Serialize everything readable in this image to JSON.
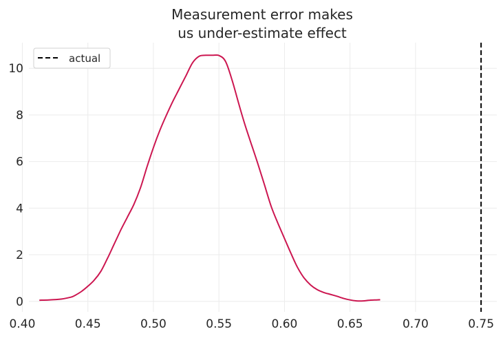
{
  "chart_data": {
    "type": "line",
    "title_lines": [
      "Measurement error makes",
      "us under-estimate effect"
    ],
    "xlabel": "",
    "ylabel": "",
    "xlim": [
      0.405,
      0.762
    ],
    "ylim": [
      -0.45,
      11.1
    ],
    "x_ticks": [
      0.4,
      0.45,
      0.5,
      0.55,
      0.6,
      0.65,
      0.7,
      0.75
    ],
    "x_tick_labels": [
      "0.40",
      "0.45",
      "0.50",
      "0.55",
      "0.60",
      "0.65",
      "0.70",
      "0.75"
    ],
    "y_ticks": [
      0,
      2,
      4,
      6,
      8,
      10
    ],
    "y_tick_labels": [
      "0",
      "2",
      "4",
      "6",
      "8",
      "10"
    ],
    "grid": true,
    "legend_position": "top-left",
    "series": [
      {
        "kind": "density",
        "color": "#cc1650",
        "x": [
          0.413,
          0.42,
          0.43,
          0.437,
          0.44,
          0.445,
          0.45,
          0.455,
          0.46,
          0.465,
          0.47,
          0.475,
          0.48,
          0.485,
          0.49,
          0.495,
          0.5,
          0.505,
          0.51,
          0.515,
          0.52,
          0.525,
          0.53,
          0.535,
          0.54,
          0.545,
          0.55,
          0.555,
          0.56,
          0.565,
          0.57,
          0.575,
          0.58,
          0.585,
          0.59,
          0.595,
          0.6,
          0.605,
          0.61,
          0.615,
          0.62,
          0.625,
          0.63,
          0.635,
          0.64,
          0.645,
          0.65,
          0.655,
          0.66,
          0.665,
          0.67,
          0.673
        ],
        "y": [
          0.05,
          0.06,
          0.1,
          0.18,
          0.25,
          0.42,
          0.65,
          0.92,
          1.3,
          1.85,
          2.45,
          3.05,
          3.6,
          4.15,
          4.85,
          5.75,
          6.6,
          7.35,
          8.0,
          8.6,
          9.15,
          9.7,
          10.25,
          10.52,
          10.56,
          10.56,
          10.55,
          10.3,
          9.5,
          8.5,
          7.55,
          6.7,
          5.85,
          4.95,
          4.05,
          3.35,
          2.7,
          2.05,
          1.45,
          1.0,
          0.7,
          0.5,
          0.38,
          0.3,
          0.22,
          0.13,
          0.06,
          0.02,
          0.02,
          0.05,
          0.06,
          0.07
        ]
      },
      {
        "kind": "vline",
        "name": "actual",
        "color": "#000000",
        "dash": true,
        "x": 0.75
      }
    ]
  }
}
